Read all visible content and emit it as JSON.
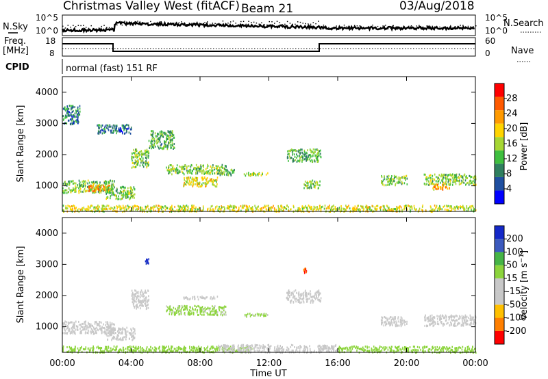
{
  "header": {
    "title": "Christmas Valley West (fitACF)",
    "beam": "Beam 21",
    "date": "03/Aug/2018"
  },
  "top_panels": {
    "nsky_label": "N.Sky",
    "nsearch_label": "N.Search",
    "noise_ticks_left": [
      "10^5",
      "10^0"
    ],
    "noise_ticks_right": [
      "10^5",
      "10^0"
    ],
    "freq_label_1": "Freq.",
    "freq_label_2": "[MHz]",
    "freq_ticks": [
      "18",
      "8"
    ],
    "nave_label": "Nave",
    "nave_ticks": [
      "60",
      "0"
    ],
    "cpid_label": "CPID",
    "cpid_text": "normal (fast) 151 RF"
  },
  "colors": {
    "power_scale": [
      "#0000ff",
      "#1f4fa0",
      "#2f7f5f",
      "#3fbf3f",
      "#a6d633",
      "#ffd400",
      "#ff9a00",
      "#ff5a00",
      "#ff0000"
    ],
    "velocity_scale": [
      "#ff0000",
      "#ff7f00",
      "#ffc000",
      "#c8c8c8",
      "#c8c8c8",
      "#8cd43c",
      "#46b446",
      "#3c5abe",
      "#1428c8"
    ],
    "accent_green": "#6fcf3f",
    "accent_orange": "#ff9f1a",
    "accent_gray": "#c8c8c8"
  },
  "chart_data": [
    {
      "type": "heatmap",
      "name": "power",
      "title": "",
      "xlabel": "",
      "ylabel": "Slant Range [km]",
      "ylim": [
        180,
        4500
      ],
      "y_ticks": [
        "4000",
        "3000",
        "2000",
        "1000"
      ],
      "colorbar_label": "Power [dB]",
      "colorbar_ticks": [
        "28",
        "24",
        "20",
        "16",
        "12",
        "8",
        "4"
      ],
      "clim": [
        0,
        32
      ],
      "features": [
        {
          "x": [
            0.0,
            3.0
          ],
          "y": [
            800,
            1200
          ],
          "value": 14
        },
        {
          "x": [
            1.5,
            2.8
          ],
          "y": [
            850,
            1050
          ],
          "value": 24
        },
        {
          "x": [
            2.5,
            4.2
          ],
          "y": [
            600,
            1000
          ],
          "value": 14
        },
        {
          "x": [
            4.0,
            5.0
          ],
          "y": [
            1600,
            2200
          ],
          "value": 14
        },
        {
          "x": [
            5.0,
            6.5
          ],
          "y": [
            2200,
            2800
          ],
          "value": 12
        },
        {
          "x": [
            6.0,
            9.5
          ],
          "y": [
            1400,
            1700
          ],
          "value": 14
        },
        {
          "x": [
            7.0,
            9.0
          ],
          "y": [
            1000,
            1300
          ],
          "value": 18
        },
        {
          "x": [
            9.0,
            10.0
          ],
          "y": [
            1350,
            1550
          ],
          "value": 12
        },
        {
          "x": [
            10.5,
            12.0
          ],
          "y": [
            1350,
            1450
          ],
          "value": 16
        },
        {
          "x": [
            13.0,
            15.0
          ],
          "y": [
            1800,
            2200
          ],
          "value": 12
        },
        {
          "x": [
            14.0,
            15.0
          ],
          "y": [
            950,
            1200
          ],
          "value": 14
        },
        {
          "x": [
            18.5,
            20.0
          ],
          "y": [
            1050,
            1350
          ],
          "value": 14
        },
        {
          "x": [
            21.0,
            24.0
          ],
          "y": [
            1050,
            1400
          ],
          "value": 14
        },
        {
          "x": [
            21.5,
            22.5
          ],
          "y": [
            900,
            1100
          ],
          "value": 22
        },
        {
          "x": [
            0.0,
            24.0
          ],
          "y": [
            200,
            400
          ],
          "value": 18
        },
        {
          "x": [
            0.0,
            1.0
          ],
          "y": [
            3000,
            3600
          ],
          "value": 8
        },
        {
          "x": [
            2.0,
            4.0
          ],
          "y": [
            2700,
            3000
          ],
          "value": 8
        }
      ]
    },
    {
      "type": "heatmap",
      "name": "velocity",
      "title": "",
      "xlabel": "Time UT",
      "ylabel": "Slant Range [km]",
      "xlim": [
        0,
        24
      ],
      "x_ticks": [
        "00:00",
        "04:00",
        "08:00",
        "12:00",
        "16:00",
        "20:00",
        "00:00"
      ],
      "ylim": [
        180,
        4500
      ],
      "y_ticks": [
        "4000",
        "3000",
        "2000",
        "1000"
      ],
      "colorbar_label": "Velocity [m s^-1]",
      "colorbar_ticks": [
        "200",
        "100",
        "50",
        "15",
        "-15",
        "-50",
        "-100",
        "-200"
      ],
      "clim": [
        -250,
        250
      ],
      "features": [
        {
          "x": [
            0.0,
            3.0
          ],
          "y": [
            800,
            1200
          ],
          "value": 0
        },
        {
          "x": [
            2.5,
            4.2
          ],
          "y": [
            600,
            1000
          ],
          "value": 0
        },
        {
          "x": [
            4.0,
            5.0
          ],
          "y": [
            1600,
            2200
          ],
          "value": 0
        },
        {
          "x": [
            6.0,
            9.5
          ],
          "y": [
            1400,
            1700
          ],
          "value": 40
        },
        {
          "x": [
            7.0,
            9.0
          ],
          "y": [
            1900,
            2000
          ],
          "value": -60
        },
        {
          "x": [
            10.5,
            12.0
          ],
          "y": [
            1350,
            1450
          ],
          "value": 40
        },
        {
          "x": [
            13.0,
            15.0
          ],
          "y": [
            1800,
            2200
          ],
          "value": 0
        },
        {
          "x": [
            18.5,
            20.0
          ],
          "y": [
            1050,
            1350
          ],
          "value": 0
        },
        {
          "x": [
            21.0,
            24.0
          ],
          "y": [
            1050,
            1400
          ],
          "value": 0
        },
        {
          "x": [
            0.0,
            11.0
          ],
          "y": [
            200,
            400
          ],
          "value": 60
        },
        {
          "x": [
            9.0,
            16.0
          ],
          "y": [
            200,
            450
          ],
          "value": -60
        },
        {
          "x": [
            16.0,
            24.0
          ],
          "y": [
            200,
            400
          ],
          "value": 60
        },
        {
          "x": [
            4.8,
            5.0
          ],
          "y": [
            3050,
            3200
          ],
          "value": 200
        },
        {
          "x": [
            14.0,
            14.2
          ],
          "y": [
            2750,
            2900
          ],
          "value": -200
        }
      ]
    }
  ]
}
